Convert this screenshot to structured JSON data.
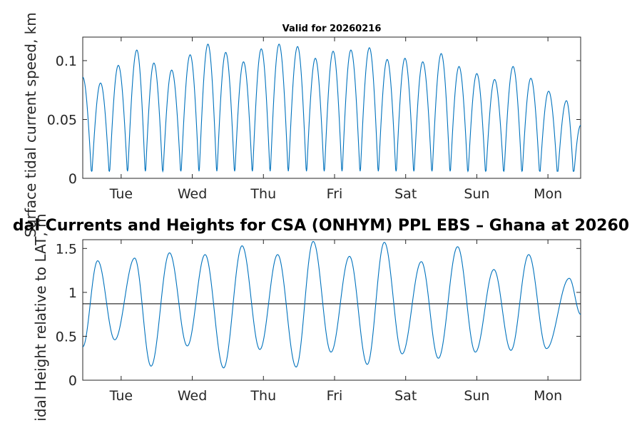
{
  "chart_data": [
    {
      "type": "line",
      "title": "Valid for 20260216",
      "ylabel": "Surface tidal current speed, km",
      "xlim_days": [
        0,
        7
      ],
      "ylim": [
        0,
        0.12
      ],
      "yticks": [
        "0",
        "0.05",
        "0.1"
      ],
      "x_ticks": [
        "Tue",
        "Wed",
        "Thu",
        "Fri",
        "Sat",
        "Sun",
        "Mon"
      ],
      "grid": false,
      "line_color": "#0072bd",
      "series": [
        {
          "note_units": "x in days from plot start, y in km",
          "x": [
            0.0,
            0.25,
            0.5,
            0.76,
            1.0,
            1.25,
            1.51,
            1.76,
            2.01,
            2.26,
            2.51,
            2.76,
            3.02,
            3.27,
            3.52,
            3.77,
            4.03,
            4.28,
            4.53,
            4.78,
            5.04,
            5.29,
            5.54,
            5.79,
            6.05,
            6.3,
            6.55,
            6.8,
            7.0
          ],
          "y": [
            0.086,
            0.081,
            0.096,
            0.109,
            0.098,
            0.092,
            0.105,
            0.114,
            0.107,
            0.099,
            0.11,
            0.114,
            0.112,
            0.102,
            0.108,
            0.109,
            0.111,
            0.101,
            0.102,
            0.099,
            0.106,
            0.095,
            0.089,
            0.084,
            0.095,
            0.085,
            0.074,
            0.066,
            0.045
          ]
        }
      ]
    },
    {
      "type": "line",
      "title": "dal Currents and Heights for CSA (ONHYM) PPL EBS  – Ghana at 20260",
      "ylabel": "idal Height relative to LAT, m",
      "xlim_days": [
        0,
        7
      ],
      "ylim": [
        0,
        1.6
      ],
      "yticks": [
        "0",
        "0.5",
        "1",
        "1.5"
      ],
      "x_ticks": [
        "Tue",
        "Wed",
        "Thu",
        "Fri",
        "Sat",
        "Sun",
        "Mon"
      ],
      "grid": false,
      "reference_line": 0.87,
      "line_color": "#0072bd",
      "series": [
        {
          "x": [
            0.0,
            0.21,
            0.45,
            0.73,
            0.96,
            1.22,
            1.47,
            1.72,
            1.98,
            2.24,
            2.49,
            2.74,
            3.0,
            3.24,
            3.49,
            3.75,
            4.0,
            4.24,
            4.49,
            4.76,
            5.0,
            5.27,
            5.52,
            5.78,
            6.02,
            6.27,
            6.52,
            6.84,
            7.0
          ],
          "y": [
            0.38,
            1.36,
            0.46,
            1.39,
            0.16,
            1.45,
            0.39,
            1.43,
            0.14,
            1.53,
            0.35,
            1.43,
            0.15,
            1.58,
            0.32,
            1.41,
            0.18,
            1.57,
            0.3,
            1.35,
            0.25,
            1.52,
            0.32,
            1.26,
            0.34,
            1.43,
            0.36,
            1.16,
            0.75
          ]
        }
      ]
    }
  ]
}
